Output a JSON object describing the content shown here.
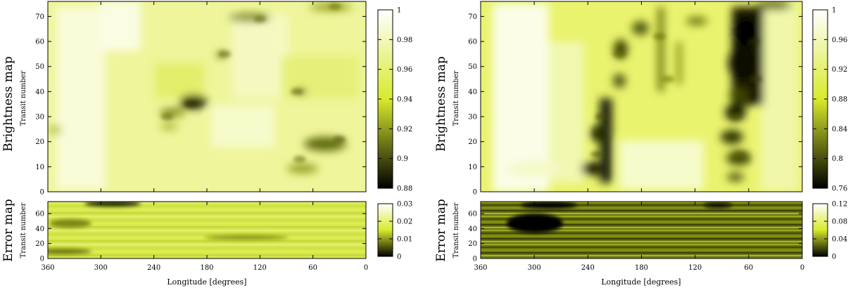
{
  "chart_data": [
    {
      "type": "heatmap",
      "panel": "left-top",
      "title": "Brightness map",
      "ylabel": "Transit number",
      "xlabel": "",
      "xlim": [
        360,
        0
      ],
      "ylim": [
        0,
        76
      ],
      "yticks": [
        "0",
        "10",
        "20",
        "30",
        "40",
        "50",
        "60",
        "70"
      ],
      "colorbar": {
        "min": 0.88,
        "max": 1.0,
        "ticks": [
          "0.88",
          "0.9",
          "0.92",
          "0.94",
          "0.96",
          "0.98",
          "1"
        ]
      },
      "features": [
        {
          "lon": 198,
          "transit": 35,
          "value": 0.885
        },
        {
          "lon": 225,
          "transit": 30,
          "value": 0.915
        },
        {
          "lon": 30,
          "transit": 21,
          "value": 0.905
        },
        {
          "lon": 75,
          "transit": 13,
          "value": 0.92
        },
        {
          "lon": 120,
          "transit": 69,
          "value": 0.915
        },
        {
          "lon": 35,
          "transit": 74,
          "value": 0.925
        },
        {
          "lon": 78,
          "transit": 40,
          "value": 0.91
        },
        {
          "lon": 160,
          "transit": 55,
          "value": 0.915
        }
      ]
    },
    {
      "type": "heatmap",
      "panel": "left-bottom",
      "title": "Error map",
      "ylabel": "Transit number",
      "xlabel": "Longitude [degrees]",
      "xlim": [
        360,
        0
      ],
      "ylim": [
        0,
        76
      ],
      "xticks": [
        "360",
        "300",
        "240",
        "180",
        "120",
        "60",
        "0"
      ],
      "yticks": [
        "0",
        "20",
        "40",
        "60"
      ],
      "colorbar": {
        "min": 0,
        "max": 0.03,
        "ticks": [
          "0",
          "0.01",
          "0.02",
          "0.03"
        ]
      }
    },
    {
      "type": "heatmap",
      "panel": "right-top",
      "title": "Brightness map",
      "ylabel": "Transit number",
      "xlabel": "",
      "xlim": [
        360,
        0
      ],
      "ylim": [
        0,
        76
      ],
      "yticks": [
        "0",
        "10",
        "20",
        "30",
        "40",
        "50",
        "60",
        "70"
      ],
      "colorbar": {
        "min": 0.76,
        "max": 1.0,
        "ticks": [
          "0.76",
          "0.8",
          "0.84",
          "0.88",
          "0.92",
          "0.96",
          "1"
        ]
      },
      "features": [
        {
          "lon": 55,
          "transit": 60,
          "value": 0.77
        },
        {
          "lon": 52,
          "transit": 45,
          "value": 0.78
        },
        {
          "lon": 230,
          "transit": 15,
          "value": 0.8
        },
        {
          "lon": 225,
          "transit": 30,
          "value": 0.8
        },
        {
          "lon": 75,
          "transit": 30,
          "value": 0.82
        },
        {
          "lon": 70,
          "transit": 15,
          "value": 0.83
        },
        {
          "lon": 205,
          "transit": 55,
          "value": 0.84
        },
        {
          "lon": 160,
          "transit": 62,
          "value": 0.85
        },
        {
          "lon": 150,
          "transit": 45,
          "value": 0.86
        }
      ]
    },
    {
      "type": "heatmap",
      "panel": "right-bottom",
      "title": "Error map",
      "ylabel": "Transit number",
      "xlabel": "Longitude [degrees]",
      "xlim": [
        360,
        0
      ],
      "ylim": [
        0,
        76
      ],
      "xticks": [
        "360",
        "300",
        "240",
        "180",
        "120",
        "60",
        "0"
      ],
      "yticks": [
        "0",
        "20",
        "40",
        "60"
      ],
      "colorbar": {
        "min": 0,
        "max": 0.12,
        "ticks": [
          "0",
          "0.04",
          "0.08",
          "0.12"
        ]
      }
    }
  ],
  "colormap": {
    "low": "#000000",
    "mid": "#d8ea2c",
    "high": "#ffffff"
  }
}
